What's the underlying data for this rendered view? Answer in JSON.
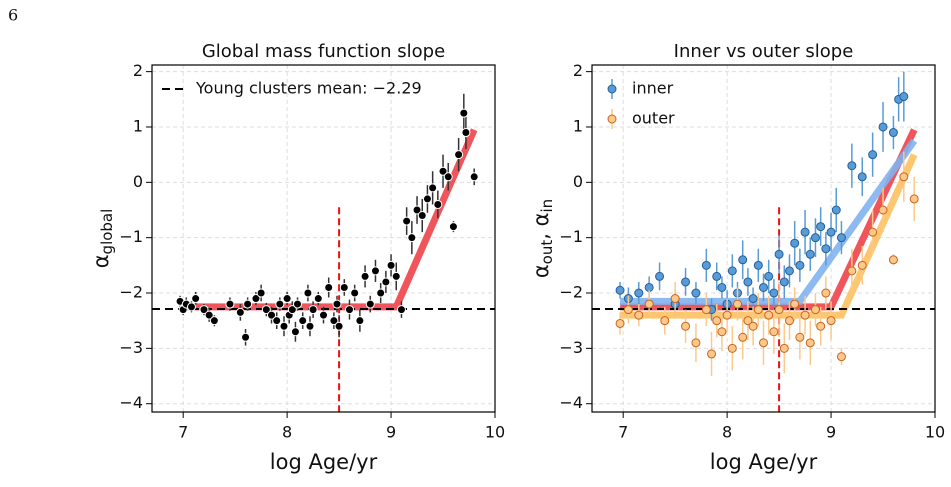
{
  "page_number": "6",
  "chart_data": [
    {
      "type": "scatter",
      "title": "Global mass function slope",
      "xlabel": "log Age/yr",
      "ylabel": [
        {
          "text": "α"
        },
        {
          "text": "global",
          "sub": true
        }
      ],
      "xlim": [
        6.7,
        10
      ],
      "ylim": [
        -4.15,
        2.12
      ],
      "xticks": [
        7,
        8,
        9,
        10
      ],
      "yticks": [
        {
          "value": -4,
          "label": "−4"
        },
        {
          "value": -3,
          "label": "−3"
        },
        {
          "value": -2,
          "label": "−2"
        },
        {
          "value": -1,
          "label": "−1"
        },
        0,
        1,
        2
      ],
      "grid": true,
      "legend": "upper left",
      "hline": {
        "value": -2.29,
        "label": "Young clusters mean: −2.29",
        "color": "#000000"
      },
      "vline": {
        "value": 8.5,
        "ymax": -0.45,
        "color": "#ee1111"
      },
      "fits": [
        {
          "color": "#f0424a",
          "x": [
            6.97,
            9.05,
            9.8
          ],
          "values": [
            -2.25,
            -2.25,
            0.95
          ]
        }
      ],
      "series": [
        {
          "color": "#000000",
          "edge": "#ffffff",
          "x": [
            6.97,
            7.0,
            7.03,
            7.08,
            7.12,
            7.2,
            7.25,
            7.3,
            7.45,
            7.55,
            7.6,
            7.62,
            7.7,
            7.75,
            7.8,
            7.85,
            7.9,
            7.93,
            7.97,
            8.0,
            8.02,
            8.05,
            8.08,
            8.1,
            8.15,
            8.2,
            8.22,
            8.25,
            8.3,
            8.35,
            8.4,
            8.45,
            8.48,
            8.5,
            8.55,
            8.6,
            8.65,
            8.7,
            8.75,
            8.8,
            8.85,
            8.9,
            8.95,
            9.0,
            9.05,
            9.1,
            9.15,
            9.2,
            9.25,
            9.3,
            9.35,
            9.4,
            9.45,
            9.5,
            9.55,
            9.6,
            9.65,
            9.7,
            9.72,
            9.8
          ],
          "values": [
            -2.15,
            -2.3,
            -2.2,
            -2.25,
            -2.1,
            -2.3,
            -2.4,
            -2.5,
            -2.2,
            -2.35,
            -2.8,
            -2.2,
            -2.1,
            -2.0,
            -2.3,
            -2.4,
            -2.5,
            -2.2,
            -2.6,
            -2.1,
            -2.4,
            -2.3,
            -2.7,
            -2.2,
            -2.5,
            -2.0,
            -2.6,
            -2.3,
            -2.1,
            -2.4,
            -1.9,
            -2.5,
            -2.2,
            -2.6,
            -1.9,
            -2.3,
            -2.0,
            -2.5,
            -1.7,
            -2.2,
            -1.6,
            -2.0,
            -1.8,
            -1.5,
            -1.7,
            -2.3,
            -0.7,
            -1.0,
            -0.5,
            -0.6,
            -0.3,
            -0.1,
            -0.4,
            0.2,
            0.1,
            -0.8,
            0.5,
            1.25,
            0.9,
            0.1
          ],
          "errors": [
            0.1,
            0.1,
            0.12,
            0.1,
            0.12,
            0.1,
            0.12,
            0.1,
            0.12,
            0.15,
            0.15,
            0.12,
            0.12,
            0.15,
            0.12,
            0.15,
            0.15,
            0.12,
            0.18,
            0.12,
            0.15,
            0.15,
            0.18,
            0.12,
            0.15,
            0.15,
            0.18,
            0.15,
            0.12,
            0.15,
            0.18,
            0.15,
            0.15,
            0.2,
            0.15,
            0.18,
            0.15,
            0.2,
            0.2,
            0.15,
            0.2,
            0.18,
            0.2,
            0.2,
            0.25,
            0.15,
            0.25,
            0.3,
            0.25,
            0.3,
            0.25,
            0.3,
            0.25,
            0.3,
            0.25,
            0.1,
            0.3,
            0.35,
            0.3,
            0.15
          ]
        }
      ]
    },
    {
      "type": "scatter",
      "title": "Inner vs outer slope",
      "xlabel": "log Age/yr",
      "ylabel": [
        {
          "text": "α"
        },
        {
          "text": "out",
          "sub": true
        },
        {
          "text": ",  α"
        },
        {
          "text": "in",
          "sub": true
        }
      ],
      "xlim": [
        6.7,
        10
      ],
      "ylim": [
        -4.15,
        2.12
      ],
      "xticks": [
        7,
        8,
        9,
        10
      ],
      "yticks": [
        {
          "value": -4,
          "label": "−4"
        },
        {
          "value": -3,
          "label": "−3"
        },
        {
          "value": -2,
          "label": "−2"
        },
        {
          "value": -1,
          "label": "−1"
        },
        0,
        1,
        2
      ],
      "grid": true,
      "legend": "upper left",
      "hline": {
        "value": -2.29,
        "color": "#000000"
      },
      "vline": {
        "value": 8.5,
        "ymax": -0.45,
        "color": "#ee1111"
      },
      "fits": [
        {
          "color": "#f0424a",
          "x": [
            6.97,
            9.0,
            9.8
          ],
          "values": [
            -2.25,
            -2.25,
            0.95
          ]
        },
        {
          "color": "#7fb3f0",
          "x": [
            6.97,
            8.7,
            9.8
          ],
          "values": [
            -2.15,
            -2.15,
            0.75
          ]
        },
        {
          "color": "#ffc060",
          "x": [
            6.97,
            9.1,
            9.8
          ],
          "values": [
            -2.4,
            -2.4,
            0.5
          ]
        }
      ],
      "series": [
        {
          "name": "inner",
          "color": "#5b9bd5",
          "edge": "#1f5f9f",
          "x": [
            6.97,
            7.05,
            7.15,
            7.25,
            7.35,
            7.5,
            7.6,
            7.7,
            7.8,
            7.85,
            7.9,
            7.95,
            8.0,
            8.05,
            8.1,
            8.15,
            8.2,
            8.25,
            8.3,
            8.35,
            8.4,
            8.45,
            8.5,
            8.55,
            8.6,
            8.65,
            8.7,
            8.75,
            8.8,
            8.85,
            8.9,
            8.95,
            9.0,
            9.05,
            9.1,
            9.2,
            9.3,
            9.4,
            9.5,
            9.6,
            9.65,
            9.7
          ],
          "values": [
            -1.95,
            -2.1,
            -2.0,
            -1.9,
            -1.7,
            -2.2,
            -1.8,
            -2.0,
            -1.5,
            -2.3,
            -1.7,
            -1.9,
            -2.2,
            -1.6,
            -2.0,
            -1.4,
            -1.8,
            -2.1,
            -1.5,
            -1.9,
            -1.7,
            -2.0,
            -1.3,
            -1.8,
            -1.6,
            -1.1,
            -1.5,
            -0.9,
            -1.3,
            -1.0,
            -0.8,
            -1.2,
            -0.9,
            -0.5,
            -1.0,
            0.3,
            0.1,
            0.5,
            1.0,
            0.9,
            1.5,
            1.55
          ],
          "errors": [
            0.15,
            0.2,
            0.2,
            0.2,
            0.25,
            0.2,
            0.25,
            0.2,
            0.3,
            0.2,
            0.25,
            0.2,
            0.25,
            0.3,
            0.2,
            0.35,
            0.25,
            0.2,
            0.3,
            0.25,
            0.3,
            0.25,
            0.35,
            0.3,
            0.3,
            0.4,
            0.3,
            0.4,
            0.3,
            0.35,
            0.35,
            0.3,
            0.35,
            0.4,
            0.3,
            0.4,
            0.35,
            0.4,
            0.45,
            0.3,
            0.4,
            0.45
          ]
        },
        {
          "name": "outer",
          "color": "#fcc98a",
          "edge": "#c8641e",
          "x": [
            6.97,
            7.05,
            7.15,
            7.25,
            7.4,
            7.5,
            7.6,
            7.7,
            7.8,
            7.85,
            7.9,
            7.95,
            8.0,
            8.05,
            8.1,
            8.15,
            8.2,
            8.25,
            8.3,
            8.35,
            8.4,
            8.45,
            8.5,
            8.55,
            8.6,
            8.65,
            8.7,
            8.75,
            8.8,
            8.85,
            8.9,
            8.95,
            9.0,
            9.1,
            9.2,
            9.3,
            9.4,
            9.5,
            9.6,
            9.7,
            9.8
          ],
          "values": [
            -2.55,
            -2.3,
            -2.4,
            -2.2,
            -2.5,
            -2.1,
            -2.6,
            -2.9,
            -2.3,
            -3.1,
            -2.5,
            -2.7,
            -2.4,
            -3.0,
            -2.2,
            -2.8,
            -2.5,
            -2.6,
            -2.3,
            -2.9,
            -2.4,
            -2.7,
            -2.3,
            -3.0,
            -2.5,
            -2.2,
            -2.8,
            -2.4,
            -2.9,
            -2.3,
            -2.6,
            -2.0,
            -2.5,
            -3.15,
            -1.6,
            -1.5,
            -0.9,
            -0.5,
            -1.4,
            0.1,
            -0.3
          ],
          "errors": [
            0.2,
            0.25,
            0.2,
            0.25,
            0.25,
            0.3,
            0.3,
            0.35,
            0.3,
            0.4,
            0.3,
            0.35,
            0.3,
            0.4,
            0.3,
            0.4,
            0.35,
            0.35,
            0.3,
            0.4,
            0.35,
            0.4,
            0.5,
            0.45,
            0.35,
            0.3,
            0.4,
            0.35,
            0.4,
            0.3,
            0.35,
            0.3,
            0.35,
            0.15,
            0.4,
            0.35,
            0.4,
            0.4,
            0.1,
            0.45,
            0.4
          ]
        }
      ]
    }
  ]
}
